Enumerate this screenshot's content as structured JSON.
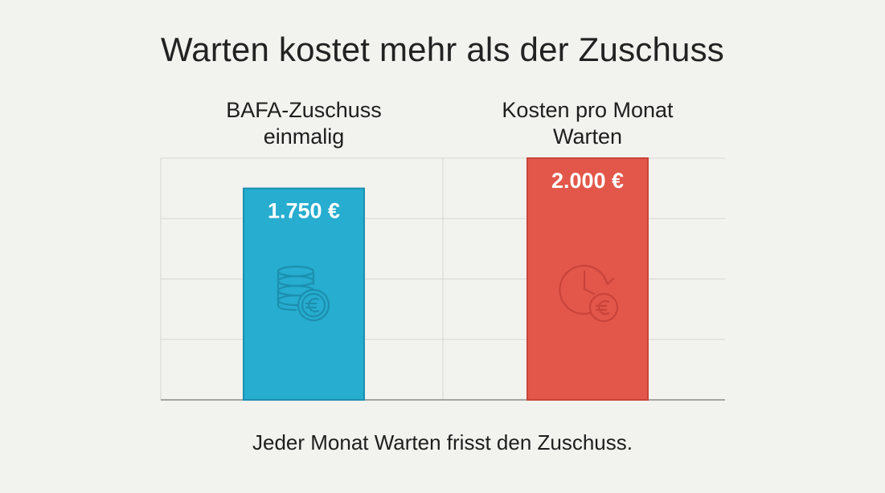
{
  "title": "Warten kostet mehr als der Zuschuss",
  "footer": "Jeder Monat Warten frisst den Zuschuss.",
  "colors": {
    "bar_subsidy": "#26adcf",
    "bar_subsidy_edge": "#1d8fb0",
    "bar_cost": "#e2574a",
    "bar_cost_edge": "#c9433a",
    "grid": "#d7d7d3",
    "axis": "#8a8a86"
  },
  "chart_data": {
    "type": "bar",
    "categories": [
      [
        "BAFA-Zuschuss",
        "einmalig"
      ],
      [
        "Kosten pro Monat",
        "Warten"
      ]
    ],
    "values": [
      1750,
      2000
    ],
    "value_labels": [
      "1.750 €",
      "2.000 €"
    ],
    "icons": [
      "coins-euro-icon",
      "clock-euro-icon"
    ],
    "ylim": [
      0,
      2000
    ],
    "grid": true,
    "title": "Warten kostet mehr als der Zuschuss"
  }
}
